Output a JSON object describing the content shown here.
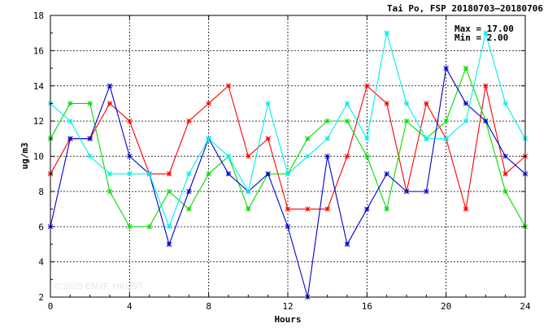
{
  "chart_data": {
    "type": "line",
    "title": "Tai Po, FSP 20180703–20180706",
    "xlabel": "Hours",
    "ylabel": "ug/m3",
    "xlim": [
      0,
      24
    ],
    "ylim": [
      2,
      18
    ],
    "x_ticks": [
      0,
      4,
      8,
      12,
      16,
      20,
      24
    ],
    "y_ticks": [
      2,
      4,
      6,
      8,
      10,
      12,
      14,
      16,
      18
    ],
    "grid": true,
    "annotations": {
      "max": "Max = 17.00",
      "min": "Min =  2.00"
    },
    "watermark": "© 2025  ENVF, HKUST",
    "x": [
      0,
      1,
      2,
      3,
      4,
      5,
      6,
      7,
      8,
      9,
      10,
      11,
      12,
      13,
      14,
      15,
      16,
      17,
      18,
      19,
      20,
      21,
      22,
      23,
      24
    ],
    "series": [
      {
        "color": "#ff0000",
        "values": [
          9,
          11,
          11,
          13,
          12,
          9,
          9,
          12,
          13,
          14,
          10,
          11,
          7,
          7,
          7,
          10,
          14,
          13,
          8,
          13,
          11,
          7,
          14,
          9,
          10
        ]
      },
      {
        "color": "#00dd00",
        "values": [
          11,
          13,
          13,
          8,
          6,
          6,
          8,
          7,
          9,
          10,
          7,
          9,
          9,
          11,
          12,
          12,
          10,
          7,
          12,
          11,
          12,
          15,
          12,
          8,
          6
        ]
      },
      {
        "color": "#0000cc",
        "values": [
          6,
          11,
          11,
          14,
          10,
          9,
          5,
          8,
          11,
          9,
          8,
          9,
          6,
          2,
          10,
          5,
          7,
          9,
          8,
          8,
          15,
          13,
          12,
          10,
          9
        ]
      },
      {
        "color": "#00eeee",
        "values": [
          13,
          12,
          10,
          9,
          9,
          9,
          6,
          9,
          11,
          10,
          8,
          13,
          9,
          10,
          11,
          13,
          11,
          17,
          13,
          11,
          11,
          12,
          17,
          13,
          11
        ]
      }
    ]
  }
}
